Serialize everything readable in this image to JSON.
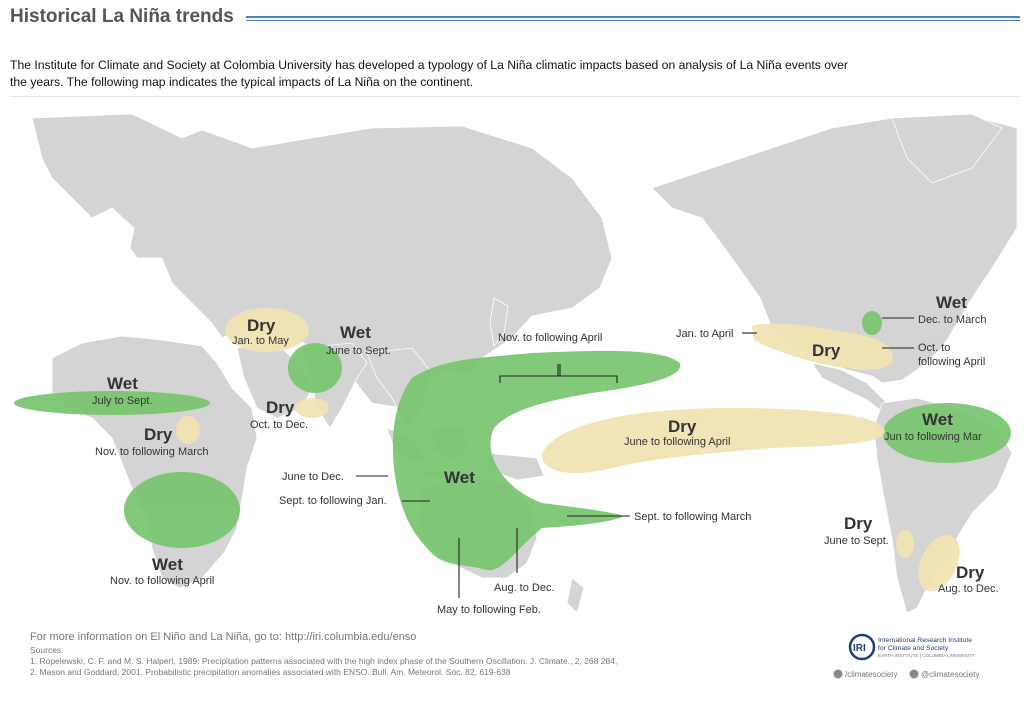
{
  "header": {
    "title": "Historical La Niña trends"
  },
  "intro_text": "The Institute for Climate and Society at Colombia University has developed a typology of La Niña climatic impacts based on analysis of La Niña events over the years. The following map indicates the typical impacts of La Niña on the continent.",
  "colors": {
    "wet": "#77c46f",
    "dry": "#f1e3b3",
    "land": "#d4d4d4",
    "title_rule": "#4a7fc4"
  },
  "map": {
    "regions": {
      "sahara_dry": {
        "word": "Dry",
        "period": "Jan. to May"
      },
      "india_wet": {
        "word": "Wet",
        "period": "June to Sept."
      },
      "sahel_wet": {
        "word": "Wet",
        "period": "July to Sept."
      },
      "india_dry": {
        "word": "Dry",
        "period": "Oct. to Dec."
      },
      "east_africa_dry": {
        "word": "Dry",
        "period": "Nov. to following March"
      },
      "south_africa_wet": {
        "word": "Wet",
        "period": "Nov. to following April"
      },
      "maritime_wet": {
        "word": "Wet"
      },
      "pacific_dry": {
        "word": "Dry",
        "period": "June to following April"
      },
      "us_dry": {
        "word": "Dry"
      },
      "us_wet": {
        "word": "Wet"
      },
      "south_america_wet": {
        "word": "Wet",
        "period": "Jun to following Mar"
      },
      "chile_dry": {
        "word": "Dry",
        "period": "June to Sept."
      },
      "argentina_dry": {
        "word": "Dry",
        "period": "Aug. to Dec."
      }
    },
    "callouts": {
      "nov_april": "Nov. to following April",
      "june_dec": "June to Dec.",
      "sept_jan": "Sept. to following Jan.",
      "sept_march": "Sept. to following March",
      "aug_dec": "Aug. to Dec.",
      "may_feb": "May to following Feb.",
      "jan_april": "Jan. to April",
      "dec_march": "Dec. to March",
      "oct_to": "Oct. to",
      "following_april": "following April"
    },
    "footer": {
      "more_info": "For more information on El Niño and La Niña, go to: http://iri.columbia.edu/enso",
      "sources_label": "Sources:",
      "source_1": "1. Ropelewski, C. F. and M. S. Halpert, 1989: Precipitation patterns associated with the high index phase of the Southern Oscillation. J. Climate., 2, 268 284,",
      "source_2": "2. Mason and Goddard, 2001. Probabilistic precipitation anomalies associated with ENSO. Bull. Am. Meteorol. Soc. 82, 619-638",
      "iri_logo_text": "IRI",
      "iri_line_1": "International Research Institute",
      "iri_line_2": "for Climate and Society",
      "iri_line_3": "EARTH INSTITUTE | COLUMBIA UNIVERSITY",
      "facebook_handle": "/climatesociety",
      "twitter_handle": "@climatesociety"
    }
  }
}
